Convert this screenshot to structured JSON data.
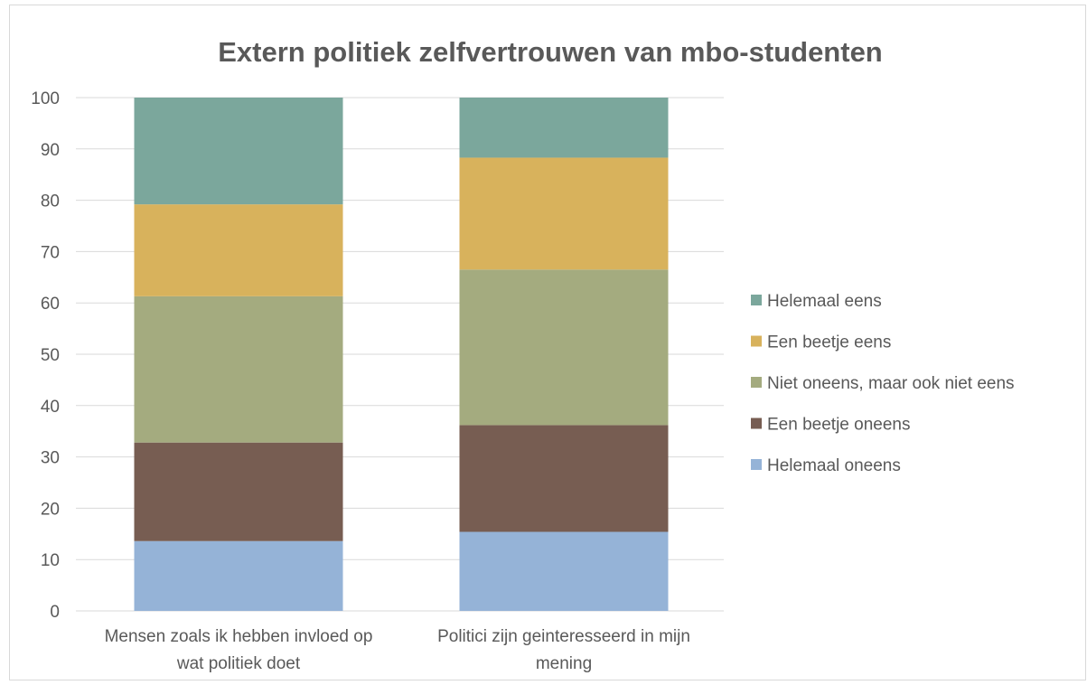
{
  "chart_data": {
    "type": "bar",
    "stacked": true,
    "title": "Extern politiek zelfvertrouwen van mbo-studenten",
    "categories": [
      [
        "Mensen zoals ik hebben invloed op",
        "wat politiek doet"
      ],
      [
        "Politici zijn geinteresseerd in mijn",
        "mening"
      ]
    ],
    "series": [
      {
        "name": "Helemaal oneens",
        "color": "#95b3d7",
        "values": [
          13.6,
          15.4
        ]
      },
      {
        "name": "Een beetje oneens",
        "color": "#775d52",
        "values": [
          19.2,
          20.8
        ]
      },
      {
        "name": "Niet oneens, maar ook niet eens",
        "color": "#a4ab7f",
        "values": [
          28.5,
          30.3
        ]
      },
      {
        "name": "Een beetje eens",
        "color": "#d8b25c",
        "values": [
          17.9,
          21.8
        ]
      },
      {
        "name": "Helemaal eens",
        "color": "#7ba79c",
        "values": [
          20.8,
          11.7
        ]
      }
    ],
    "ylim": [
      0,
      100
    ],
    "yticks": [
      0,
      10,
      20,
      30,
      40,
      50,
      60,
      70,
      80,
      90,
      100
    ],
    "grid": true,
    "legend_position": "right"
  }
}
